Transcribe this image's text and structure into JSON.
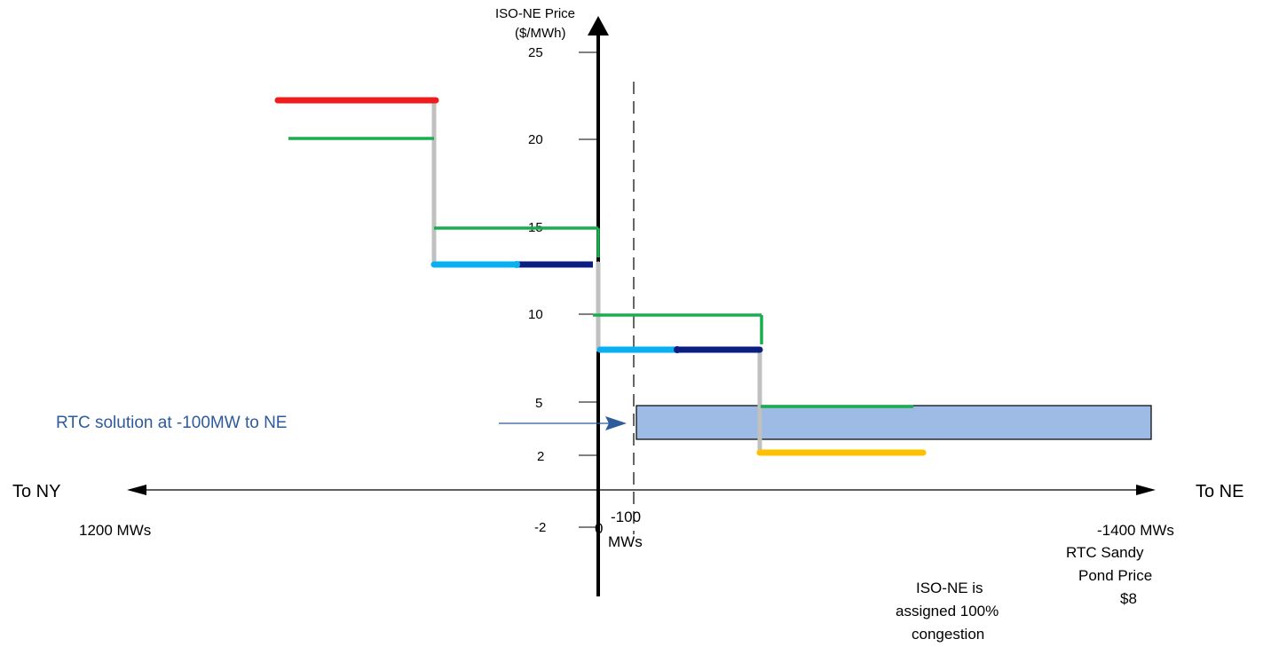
{
  "axis": {
    "y_title_line1": "ISO-NE Price",
    "y_title_line2": "($/MWh)",
    "y_ticks": [
      "25",
      "20",
      "15",
      "10",
      "5",
      "2",
      "-2"
    ],
    "x_zero": "0",
    "x_left_label": "To NY",
    "x_right_label": "To NE",
    "left_mw": "1200 MWs",
    "right_mw": "-1400 MWs",
    "marker_top": "-100",
    "marker_bottom": "MWs"
  },
  "annotations": {
    "rtc_solution": "RTC solution at -100MW to NE",
    "sandy_line1": "RTC Sandy",
    "sandy_line2": "Pond Price",
    "sandy_line3": "$8",
    "congestion_line1": "ISO-NE is",
    "congestion_line2": "assigned 100%",
    "congestion_line3": "congestion"
  },
  "colors": {
    "red": "#ee1c1c",
    "green": "#1aad4f",
    "gray": "#c0c0c0",
    "light_blue": "#08b0ef",
    "dark_blue": "#0b1f80",
    "yellow": "#ffc000",
    "box_fill": "#9dbbe4",
    "arrow_blue": "#2e5b9a"
  }
}
